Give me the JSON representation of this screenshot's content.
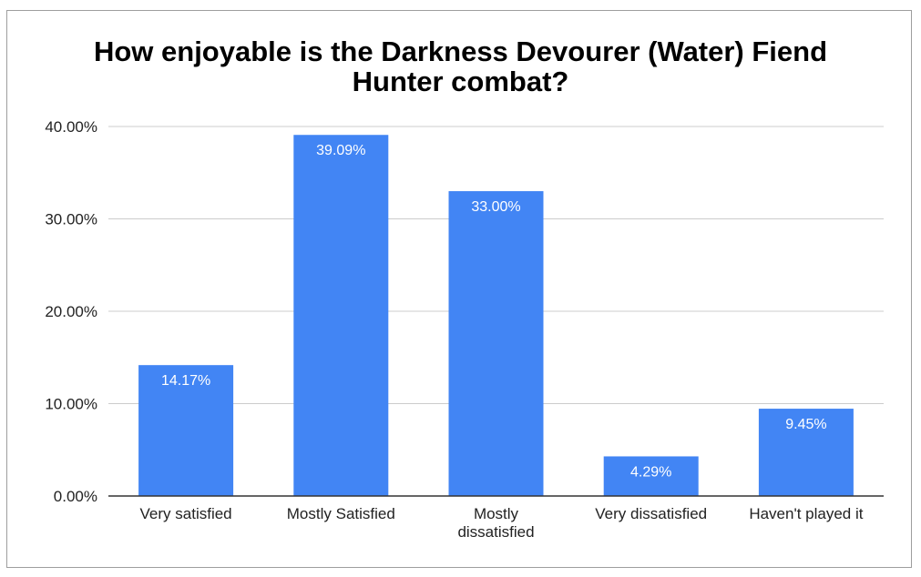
{
  "chart_data": {
    "type": "bar",
    "title_lines": [
      "How enjoyable is the Darkness Devourer (Water) Fiend",
      "Hunter combat?"
    ],
    "categories": [
      [
        "Very satisfied"
      ],
      [
        "Mostly Satisfied"
      ],
      [
        "Mostly",
        "dissatisfied"
      ],
      [
        "Very dissatisfied"
      ],
      [
        "Haven't played it"
      ]
    ],
    "values": [
      14.17,
      39.09,
      33.0,
      4.29,
      9.45
    ],
    "data_labels": [
      "14.17%",
      "39.09%",
      "33.00%",
      "4.29%",
      "9.45%"
    ],
    "y_ticks": [
      0,
      10,
      20,
      30,
      40
    ],
    "y_tick_labels": [
      "0.00%",
      "10.00%",
      "20.00%",
      "30.00%",
      "40.00%"
    ],
    "ylim": [
      0,
      40
    ],
    "grid": true,
    "legend": "none",
    "bar_color": "#4285f4",
    "grid_color": "#cccccc",
    "axis_color": "#333333"
  }
}
